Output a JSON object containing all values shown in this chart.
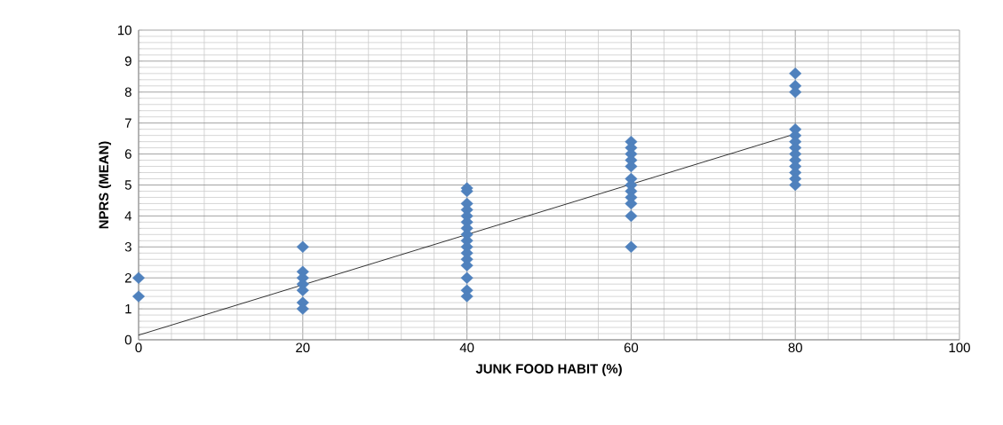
{
  "chart_data": {
    "type": "scatter",
    "xlabel": "JUNK FOOD HABIT (%)",
    "ylabel": "NPRS (MEAN)",
    "xlim": [
      0,
      100
    ],
    "ylim": [
      0,
      10
    ],
    "xticks": [
      0,
      20,
      40,
      60,
      80,
      100
    ],
    "yticks": [
      0,
      1,
      2,
      3,
      4,
      5,
      6,
      7,
      8,
      9,
      10
    ],
    "grid": true,
    "series": [
      {
        "marker": "diamond",
        "color": "#4f81bd",
        "x": [
          0,
          0,
          20,
          20,
          20,
          20,
          20,
          20,
          20,
          40,
          40,
          40,
          40,
          40,
          40,
          40,
          40,
          40,
          40,
          40,
          40,
          40,
          40,
          40,
          40,
          60,
          60,
          60,
          60,
          60,
          60,
          60,
          60,
          60,
          60,
          60,
          60,
          80,
          80,
          80,
          80,
          80,
          80,
          80,
          80,
          80,
          80,
          80,
          80,
          80
        ],
        "values": [
          2.0,
          1.4,
          3.0,
          2.2,
          2.0,
          1.8,
          1.6,
          1.2,
          1.0,
          4.9,
          4.4,
          4.2,
          4.0,
          3.8,
          3.6,
          3.4,
          3.2,
          3.0,
          2.8,
          2.6,
          2.4,
          2.0,
          1.6,
          1.4,
          4.8,
          6.4,
          6.2,
          6.0,
          5.8,
          5.6,
          5.2,
          5.0,
          4.8,
          4.6,
          4.4,
          4.0,
          3.0,
          8.6,
          8.2,
          8.0,
          6.8,
          6.6,
          6.4,
          6.2,
          6.0,
          5.8,
          5.6,
          5.4,
          5.2,
          5.0
        ]
      },
      {
        "type": "line",
        "marker": "none",
        "color": "#000000",
        "x": [
          0,
          80
        ],
        "values": [
          0.15,
          6.65
        ]
      }
    ]
  }
}
